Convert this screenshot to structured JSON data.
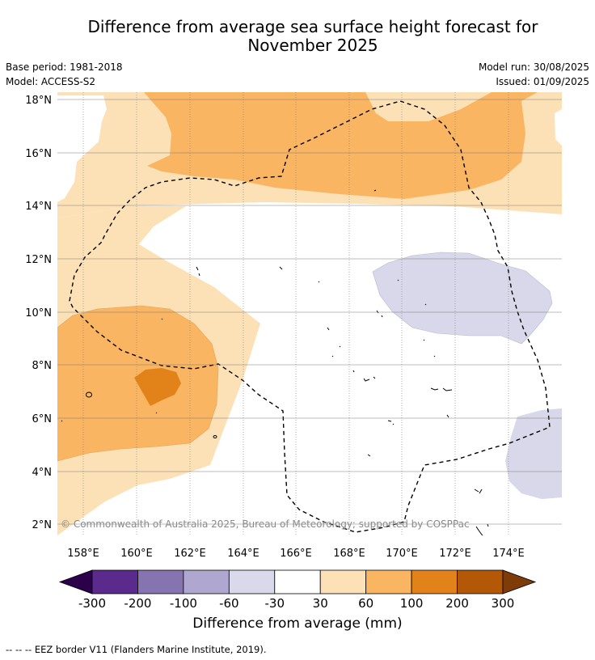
{
  "title": {
    "line1": "Difference from average sea surface height forecast for",
    "line2": "November 2025"
  },
  "meta": {
    "base_period": "Base period: 1981-2018",
    "model": "Model: ACCESS-S2",
    "model_run": "Model run: 30/08/2025",
    "issued": "Issued: 01/09/2025"
  },
  "map": {
    "lat_labels": [
      "18°N",
      "16°N",
      "14°N",
      "12°N",
      "10°N",
      "8°N",
      "6°N",
      "4°N",
      "2°N"
    ],
    "lon_labels": [
      "158°E",
      "160°E",
      "162°E",
      "164°E",
      "166°E",
      "168°E",
      "170°E",
      "172°E",
      "174°E"
    ],
    "copyright": "© Commonwealth of Australia 2025, Bureau of Meteorology; supported by COSPPac",
    "colors": {
      "light_orange": "#fde1b6",
      "mid_orange": "#f9b562",
      "dark_orange": "#e2831a",
      "light_purple": "#d8d8ea",
      "eez_line": "#000000"
    }
  },
  "colorbar": {
    "ticks": [
      "-300",
      "-200",
      "-100",
      "-60",
      "-30",
      "30",
      "60",
      "100",
      "200",
      "300"
    ],
    "colors": [
      "#2d004b",
      "#5a2a8c",
      "#8574b0",
      "#b0a7d1",
      "#d9d9eb",
      "#ffffff",
      "#fde1b6",
      "#f9b562",
      "#e2831a",
      "#b35806",
      "#7f3b08"
    ],
    "title": "Difference from average (mm)"
  },
  "footnote": "--  --  -- EEZ border V11 (Flanders Marine Institute, 2019)."
}
